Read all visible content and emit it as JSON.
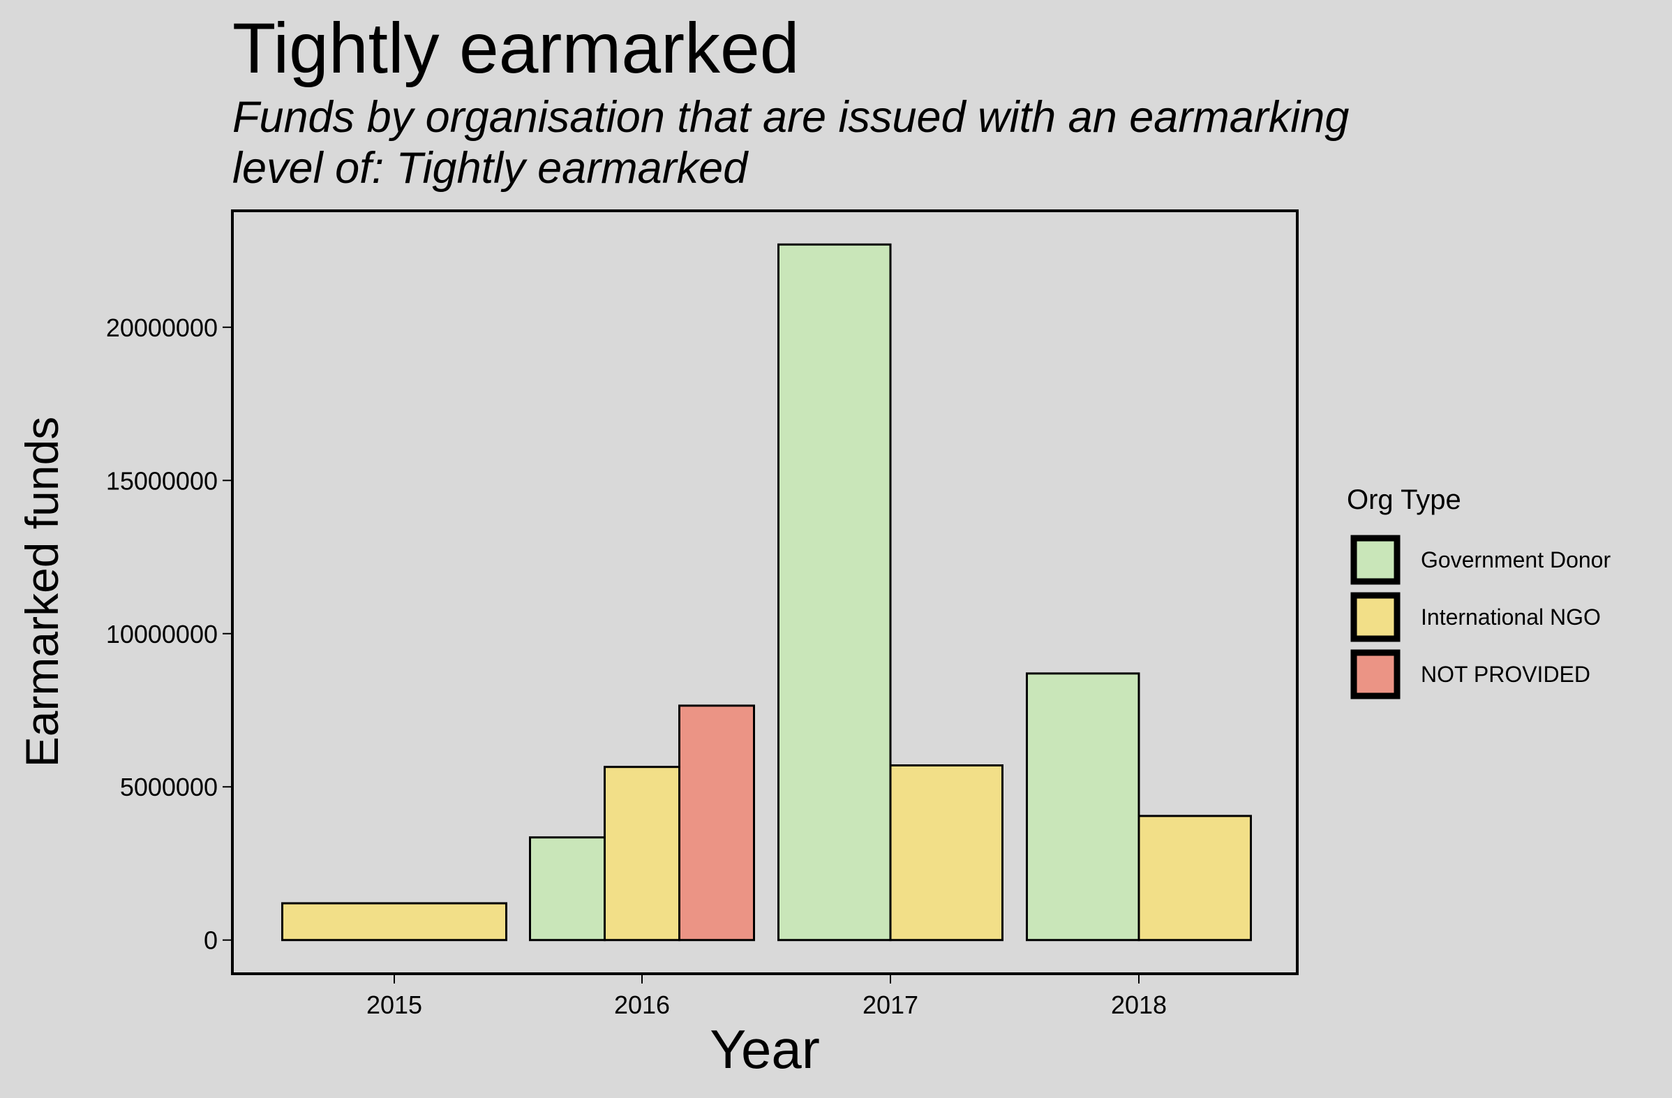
{
  "chart_data": {
    "type": "bar",
    "title": "Tightly earmarked",
    "subtitle_lines": [
      "Funds by organisation that are issued with an earmarking",
      "level of: Tightly earmarked"
    ],
    "xlabel": "Year",
    "ylabel": "Earmarked funds",
    "ylim": [
      -1100000,
      23800000
    ],
    "yticks": [
      0,
      5000000,
      10000000,
      15000000,
      20000000
    ],
    "ytick_labels": [
      "0",
      "5000000",
      "10000000",
      "15000000",
      "20000000"
    ],
    "categories": [
      "2015",
      "2016",
      "2017",
      "2018"
    ],
    "legend": {
      "title": "Org Type",
      "placement": "right"
    },
    "grid": false,
    "series": [
      {
        "name": "Government Donor",
        "color": "#c9e6b9",
        "values": [
          null,
          3350000,
          22700000,
          8700000
        ]
      },
      {
        "name": "International NGO",
        "color": "#f2df88",
        "values": [
          1200000,
          5650000,
          5700000,
          4050000
        ]
      },
      {
        "name": "NOT PROVIDED",
        "color": "#eb9485",
        "values": [
          null,
          7650000,
          null,
          null
        ]
      }
    ]
  }
}
